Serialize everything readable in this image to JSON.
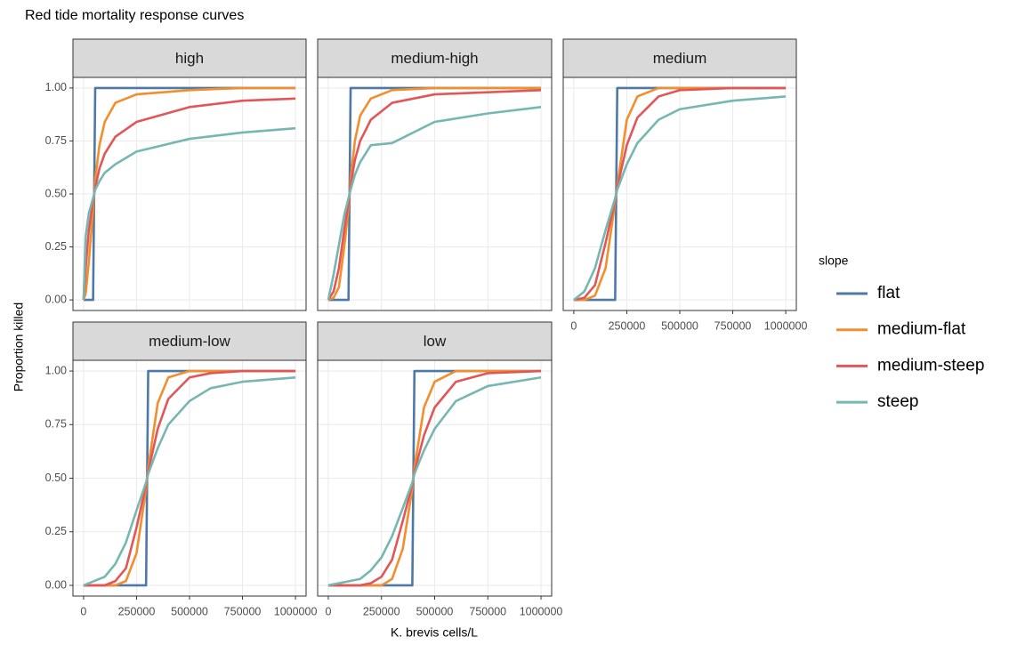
{
  "title": "Red tide mortality response curves",
  "xlabel": "K. brevis cells/L",
  "ylabel": "Proportion killed",
  "legend_title": "slope",
  "chart_data": [
    {
      "type": "line",
      "title": "high",
      "x": [
        0,
        10000,
        25000,
        45000,
        50000,
        55000,
        75000,
        100000,
        150000,
        250000,
        500000,
        750000,
        1000000
      ],
      "series": [
        {
          "name": "flat",
          "color": "#4e79a7",
          "values": [
            0,
            0,
            0,
            0,
            0.5,
            1,
            1,
            1,
            1,
            1,
            1,
            1,
            1
          ]
        },
        {
          "name": "medium-flat",
          "color": "#f28e2b",
          "values": [
            0,
            0.03,
            0.18,
            0.43,
            0.5,
            0.57,
            0.73,
            0.84,
            0.93,
            0.97,
            0.99,
            1,
            1
          ]
        },
        {
          "name": "medium-steep",
          "color": "#e15759",
          "values": [
            0,
            0.15,
            0.33,
            0.47,
            0.5,
            0.53,
            0.62,
            0.69,
            0.77,
            0.84,
            0.91,
            0.94,
            0.95
          ]
        },
        {
          "name": "steep",
          "color": "#76b7b2",
          "values": [
            0,
            0.3,
            0.41,
            0.48,
            0.5,
            0.52,
            0.56,
            0.6,
            0.64,
            0.7,
            0.76,
            0.79,
            0.81
          ]
        }
      ],
      "xlim": [
        -50000,
        1050000
      ],
      "ylim": [
        -0.05,
        1.05
      ],
      "xticks": [
        0,
        250000,
        500000,
        750000,
        1000000
      ],
      "yticks": [
        {
          "value": 0,
          "label": "0.00"
        },
        {
          "value": 0.25,
          "label": "0.25"
        },
        {
          "value": 0.5,
          "label": "0.50"
        },
        {
          "value": 0.75,
          "label": "0.75"
        },
        {
          "value": 1,
          "label": "1.00"
        }
      ],
      "grid": true
    },
    {
      "type": "line",
      "title": "medium-high",
      "x": [
        0,
        25000,
        50000,
        75000,
        95000,
        100000,
        105000,
        125000,
        150000,
        200000,
        300000,
        500000,
        750000,
        1000000
      ],
      "series": [
        {
          "name": "flat",
          "color": "#4e79a7",
          "values": [
            0,
            0,
            0,
            0,
            0,
            0.5,
            1,
            1,
            1,
            1,
            1,
            1,
            1,
            1
          ]
        },
        {
          "name": "medium-flat",
          "color": "#f28e2b",
          "values": [
            0,
            0.01,
            0.06,
            0.25,
            0.43,
            0.5,
            0.57,
            0.75,
            0.87,
            0.95,
            0.99,
            1,
            1,
            1
          ]
        },
        {
          "name": "medium-steep",
          "color": "#e15759",
          "values": [
            0,
            0.04,
            0.15,
            0.33,
            0.46,
            0.5,
            0.54,
            0.66,
            0.75,
            0.85,
            0.93,
            0.97,
            0.98,
            0.99
          ]
        },
        {
          "name": "steep",
          "color": "#76b7b2",
          "values": [
            0,
            0.12,
            0.26,
            0.4,
            0.48,
            0.5,
            0.52,
            0.59,
            0.65,
            0.73,
            0.74,
            0.84,
            0.88,
            0.91
          ]
        }
      ],
      "xlim": [
        -50000,
        1050000
      ],
      "ylim": [
        -0.05,
        1.05
      ],
      "xticks": [
        0,
        250000,
        500000,
        750000,
        1000000
      ],
      "yticks": [
        {
          "value": 0,
          "label": "0.00"
        },
        {
          "value": 0.25,
          "label": "0.25"
        },
        {
          "value": 0.5,
          "label": "0.50"
        },
        {
          "value": 0.75,
          "label": "0.75"
        },
        {
          "value": 1,
          "label": "1.00"
        }
      ],
      "grid": true
    },
    {
      "type": "line",
      "title": "medium",
      "x": [
        0,
        50000,
        100000,
        150000,
        195000,
        200000,
        205000,
        250000,
        300000,
        400000,
        500000,
        750000,
        1000000
      ],
      "series": [
        {
          "name": "flat",
          "color": "#4e79a7",
          "values": [
            0,
            0,
            0,
            0,
            0,
            0.5,
            1,
            1,
            1,
            1,
            1,
            1,
            1
          ]
        },
        {
          "name": "medium-flat",
          "color": "#f28e2b",
          "values": [
            0,
            0,
            0.02,
            0.15,
            0.46,
            0.5,
            0.54,
            0.85,
            0.96,
            1,
            1,
            1,
            1
          ]
        },
        {
          "name": "medium-steep",
          "color": "#e15759",
          "values": [
            0,
            0.01,
            0.07,
            0.27,
            0.47,
            0.5,
            0.53,
            0.73,
            0.86,
            0.96,
            0.99,
            1,
            1
          ]
        },
        {
          "name": "steep",
          "color": "#76b7b2",
          "values": [
            0,
            0.04,
            0.15,
            0.33,
            0.48,
            0.5,
            0.52,
            0.64,
            0.74,
            0.85,
            0.9,
            0.94,
            0.96
          ]
        }
      ],
      "xlim": [
        -50000,
        1050000
      ],
      "ylim": [
        -0.05,
        1.05
      ],
      "xticks": [
        0,
        250000,
        500000,
        750000,
        1000000
      ],
      "yticks": [
        {
          "value": 0,
          "label": "0.00"
        },
        {
          "value": 0.25,
          "label": "0.25"
        },
        {
          "value": 0.5,
          "label": "0.50"
        },
        {
          "value": 0.75,
          "label": "0.75"
        },
        {
          "value": 1,
          "label": "1.00"
        }
      ],
      "grid": true
    },
    {
      "type": "line",
      "title": "medium-low",
      "x": [
        0,
        100000,
        150000,
        200000,
        250000,
        295000,
        300000,
        305000,
        350000,
        400000,
        500000,
        600000,
        750000,
        1000000
      ],
      "series": [
        {
          "name": "flat",
          "color": "#4e79a7",
          "values": [
            0,
            0,
            0,
            0,
            0,
            0,
            0.5,
            1,
            1,
            1,
            1,
            1,
            1,
            1
          ]
        },
        {
          "name": "medium-flat",
          "color": "#f28e2b",
          "values": [
            0,
            0,
            0,
            0.02,
            0.15,
            0.45,
            0.5,
            0.55,
            0.85,
            0.97,
            1,
            1,
            1,
            1
          ]
        },
        {
          "name": "medium-steep",
          "color": "#e15759",
          "values": [
            0,
            0,
            0.02,
            0.08,
            0.27,
            0.47,
            0.5,
            0.53,
            0.73,
            0.87,
            0.97,
            0.99,
            1,
            1
          ]
        },
        {
          "name": "steep",
          "color": "#76b7b2",
          "values": [
            0,
            0.04,
            0.1,
            0.2,
            0.35,
            0.48,
            0.5,
            0.52,
            0.64,
            0.75,
            0.86,
            0.92,
            0.95,
            0.97
          ]
        }
      ],
      "xlim": [
        -50000,
        1050000
      ],
      "ylim": [
        -0.05,
        1.05
      ],
      "xticks": [
        0,
        250000,
        500000,
        750000,
        1000000
      ],
      "yticks": [
        {
          "value": 0,
          "label": "0.00"
        },
        {
          "value": 0.25,
          "label": "0.25"
        },
        {
          "value": 0.5,
          "label": "0.50"
        },
        {
          "value": 0.75,
          "label": "0.75"
        },
        {
          "value": 1,
          "label": "1.00"
        }
      ],
      "grid": true
    },
    {
      "type": "line",
      "title": "low",
      "x": [
        0,
        150000,
        200000,
        250000,
        300000,
        350000,
        395000,
        400000,
        405000,
        450000,
        500000,
        600000,
        750000,
        1000000
      ],
      "series": [
        {
          "name": "flat",
          "color": "#4e79a7",
          "values": [
            0,
            0,
            0,
            0,
            0,
            0,
            0,
            0.5,
            1,
            1,
            1,
            1,
            1,
            1
          ]
        },
        {
          "name": "medium-flat",
          "color": "#f28e2b",
          "values": [
            0,
            0,
            0,
            0,
            0.03,
            0.17,
            0.45,
            0.5,
            0.55,
            0.83,
            0.95,
            1,
            1,
            1
          ]
        },
        {
          "name": "medium-steep",
          "color": "#e15759",
          "values": [
            0,
            0,
            0.01,
            0.04,
            0.12,
            0.3,
            0.47,
            0.5,
            0.53,
            0.7,
            0.83,
            0.95,
            0.99,
            1
          ]
        },
        {
          "name": "steep",
          "color": "#76b7b2",
          "values": [
            0,
            0.03,
            0.07,
            0.13,
            0.23,
            0.36,
            0.48,
            0.5,
            0.52,
            0.63,
            0.73,
            0.86,
            0.93,
            0.97
          ]
        }
      ],
      "xlim": [
        -50000,
        1050000
      ],
      "ylim": [
        -0.05,
        1.05
      ],
      "xticks": [
        0,
        250000,
        500000,
        750000,
        1000000
      ],
      "yticks": [
        {
          "value": 0,
          "label": "0.00"
        },
        {
          "value": 0.25,
          "label": "0.25"
        },
        {
          "value": 0.5,
          "label": "0.50"
        },
        {
          "value": 0.75,
          "label": "0.75"
        },
        {
          "value": 1,
          "label": "1.00"
        }
      ],
      "grid": true
    }
  ]
}
